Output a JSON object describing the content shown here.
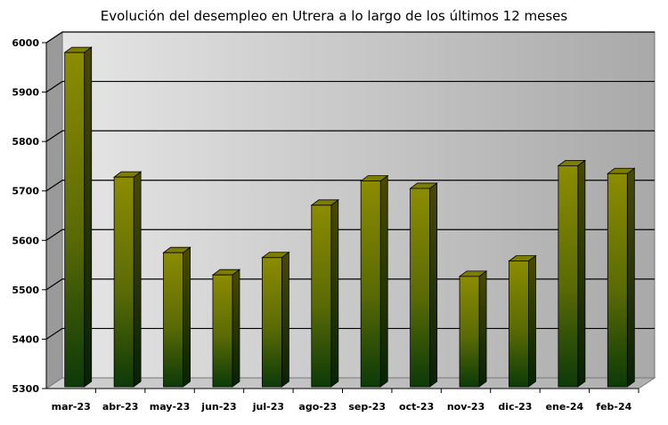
{
  "title": "Evolución del desempleo en Utrera a lo largo de los últimos 12 meses",
  "chart_data": {
    "type": "bar",
    "title": "Evolución del desempleo en Utrera a lo largo de los últimos 12 meses",
    "xlabel": "",
    "ylabel": "",
    "categories": [
      "mar-23",
      "abr-23",
      "may-23",
      "jun-23",
      "jul-23",
      "ago-23",
      "sep-23",
      "oct-23",
      "nov-23",
      "dic-23",
      "ene-24",
      "feb-24"
    ],
    "values": [
      5980,
      5728,
      5575,
      5530,
      5565,
      5671,
      5720,
      5705,
      5527,
      5558,
      5751,
      5735
    ],
    "ylim": [
      5300,
      6000
    ],
    "yticks": [
      5300,
      5400,
      5500,
      5600,
      5700,
      5800,
      5900,
      6000
    ],
    "grid": true,
    "colors": {
      "bar_top": "#8a8a00",
      "bar_bottom": "#0e3a0a",
      "background_light": "#dcdcdc",
      "background_dark": "#a8a8a8",
      "gridline": "#000000"
    }
  }
}
